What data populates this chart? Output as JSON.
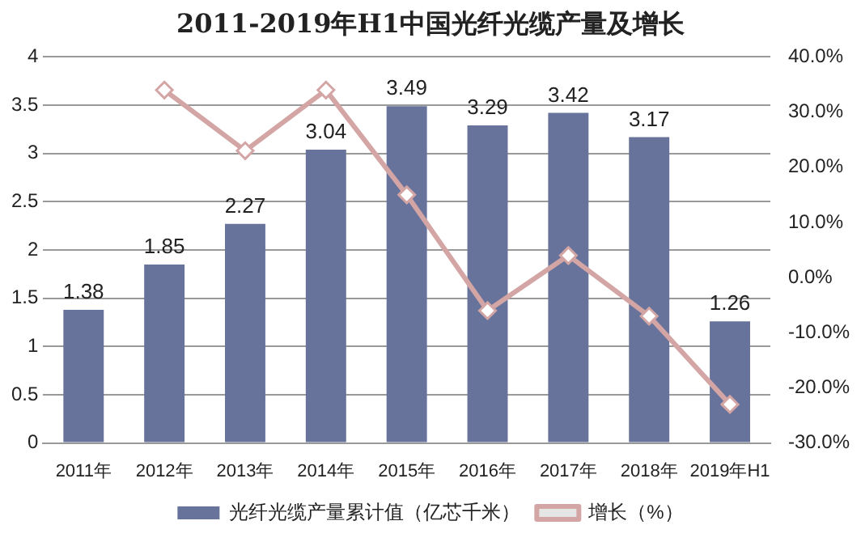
{
  "chart_data": {
    "type": "bar",
    "title": "2011-2019年H1中国光纤光缆产量及增长",
    "categories": [
      "2011年",
      "2012年",
      "2013年",
      "2014年",
      "2015年",
      "2016年",
      "2017年",
      "2018年",
      "2019年H1"
    ],
    "series": [
      {
        "name": "光纤光缆产量累计值（亿芯千米）",
        "color": "#67739a",
        "values": [
          1.38,
          1.85,
          2.27,
          3.04,
          3.49,
          3.29,
          3.42,
          3.17,
          1.26
        ],
        "value_labels": [
          "1.38",
          "1.85",
          "2.27",
          "3.04",
          "3.49",
          "3.29",
          "3.42",
          "3.17",
          "1.26"
        ]
      },
      {
        "name": "增长（%）",
        "type": "line",
        "axis": "y2",
        "color": "#d4a5a5",
        "marker": "diamond",
        "values": [
          null,
          34,
          23,
          34,
          15,
          -6,
          4,
          -7,
          -23
        ]
      }
    ],
    "ylim": [
      0,
      4
    ],
    "yticks": [
      0,
      0.5,
      1,
      1.5,
      2,
      2.5,
      3,
      3.5,
      4
    ],
    "y2lim": [
      -30,
      40
    ],
    "y2ticks": [
      {
        "value": -30,
        "label": "-30.0%"
      },
      {
        "value": -20,
        "label": "-20.0%"
      },
      {
        "value": -10,
        "label": "-10.0%"
      },
      {
        "value": 0,
        "label": "0.0%"
      },
      {
        "value": 10,
        "label": "10.0%"
      },
      {
        "value": 20,
        "label": "20.0%"
      },
      {
        "value": 30,
        "label": "30.0%"
      },
      {
        "value": 40,
        "label": "40.0%"
      }
    ],
    "grid": "y",
    "legend": "bottom"
  }
}
